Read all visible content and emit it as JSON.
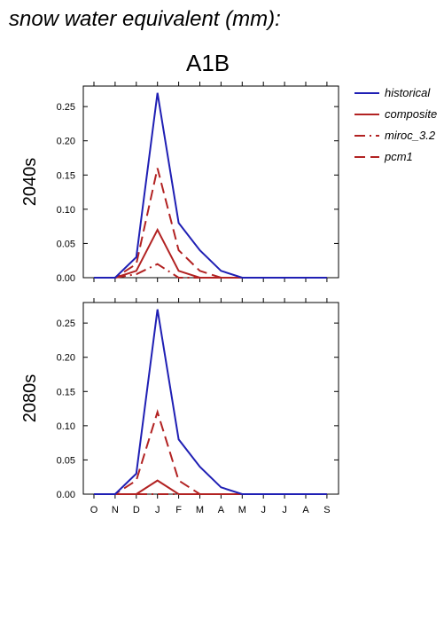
{
  "page": {
    "title": "snow water equivalent (mm):",
    "scenario": "A1B"
  },
  "chart_data": {
    "type": "line",
    "categories": [
      "O",
      "N",
      "D",
      "J",
      "F",
      "M",
      "A",
      "M",
      "J",
      "J",
      "A",
      "S"
    ],
    "ylim": [
      0,
      0.28
    ],
    "yticks": [
      "0.00",
      "0.05",
      "0.10",
      "0.15",
      "0.20",
      "0.25"
    ],
    "ytick_values": [
      0,
      0.05,
      0.1,
      0.15,
      0.2,
      0.25
    ],
    "legend": {
      "placement": "right",
      "entries": [
        {
          "name": "historical",
          "color": "#1f1fb4",
          "dash": "solid"
        },
        {
          "name": "composite",
          "color": "#b22222",
          "dash": "solid"
        },
        {
          "name": "miroc_3.2",
          "color": "#b22222",
          "dash": "dashdot"
        },
        {
          "name": "pcm1",
          "color": "#b22222",
          "dash": "dashed"
        }
      ]
    },
    "panels": [
      {
        "label": "2040s",
        "series": [
          {
            "name": "historical",
            "values": [
              0,
              0,
              0.03,
              0.27,
              0.08,
              0.04,
              0.01,
              0,
              0,
              0,
              0,
              0
            ]
          },
          {
            "name": "composite",
            "values": [
              0,
              0,
              0.01,
              0.07,
              0.01,
              0,
              0,
              0,
              0,
              0,
              0,
              0
            ]
          },
          {
            "name": "miroc_3.2",
            "values": [
              0,
              0,
              0.005,
              0.02,
              0,
              0,
              0,
              0,
              0,
              0,
              0,
              0
            ]
          },
          {
            "name": "pcm1",
            "values": [
              0,
              0,
              0.02,
              0.16,
              0.04,
              0.01,
              0,
              0,
              0,
              0,
              0,
              0
            ]
          }
        ]
      },
      {
        "label": "2080s",
        "series": [
          {
            "name": "historical",
            "values": [
              0,
              0,
              0.03,
              0.27,
              0.08,
              0.04,
              0.01,
              0,
              0,
              0,
              0,
              0
            ]
          },
          {
            "name": "composite",
            "values": [
              0,
              0,
              0,
              0.02,
              0,
              0,
              0,
              0,
              0,
              0,
              0,
              0
            ]
          },
          {
            "name": "miroc_3.2",
            "values": [
              0,
              0,
              0,
              0,
              0,
              0,
              0,
              0,
              0,
              0,
              0,
              0
            ]
          },
          {
            "name": "pcm1",
            "values": [
              0,
              0,
              0.02,
              0.12,
              0.02,
              0,
              0,
              0,
              0,
              0,
              0,
              0
            ]
          }
        ]
      }
    ]
  }
}
